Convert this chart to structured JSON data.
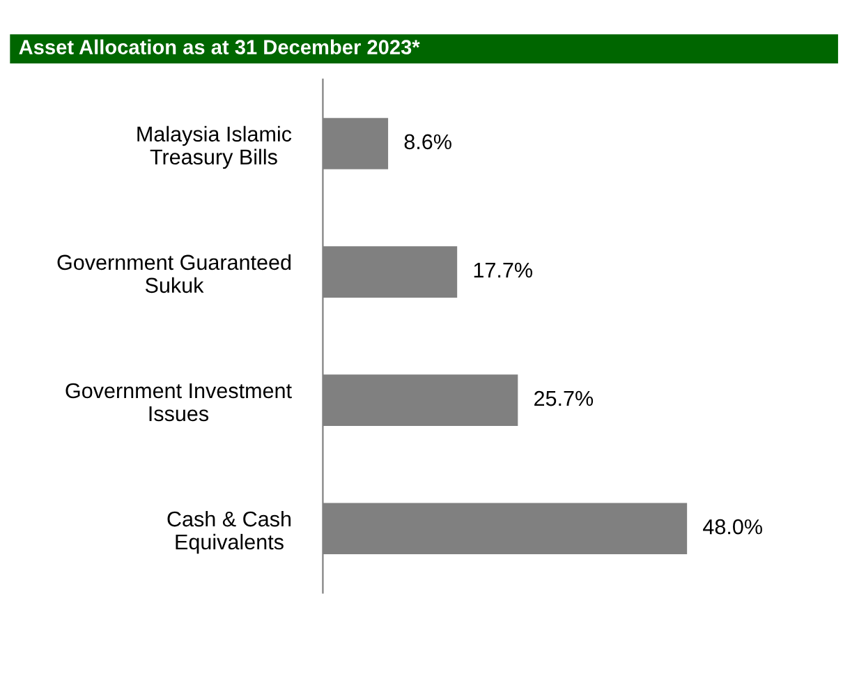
{
  "chart_data": {
    "type": "bar",
    "orientation": "horizontal",
    "title": "Asset Allocation as at 31 December 2023*",
    "categories": [
      "Malaysia Islamic\nTreasury Bills",
      "Government Guaranteed\nSukuk",
      "Government Investment\nIssues",
      "Cash & Cash\nEquivalents"
    ],
    "values": [
      8.6,
      17.7,
      25.7,
      48.0
    ],
    "value_labels": [
      "8.6%",
      "17.7%",
      "25.7%",
      "48.0%"
    ],
    "color": "#808080",
    "grid": false,
    "legend": false
  }
}
